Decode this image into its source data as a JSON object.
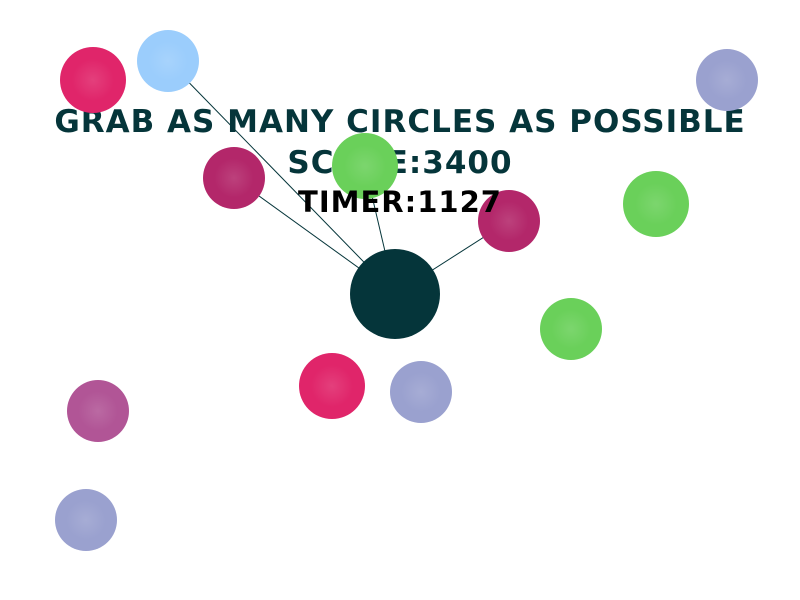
{
  "game": {
    "instruction": "Grab as many circles as possible",
    "score_label": "Score:",
    "score_value": "3400",
    "timer_label": "Timer:",
    "timer_value": "1127"
  },
  "colors": {
    "background": "#ffffff",
    "text": "#05353a",
    "timer_text": "#000000",
    "player": "#05353a",
    "tether": "#05353a",
    "crimson": "#e0256a",
    "sky": "#9bcdfc",
    "magenta": "#b3276a",
    "green": "#6ad05a",
    "lavender": "#9aa1cf",
    "orchid": "#b15596"
  }
}
